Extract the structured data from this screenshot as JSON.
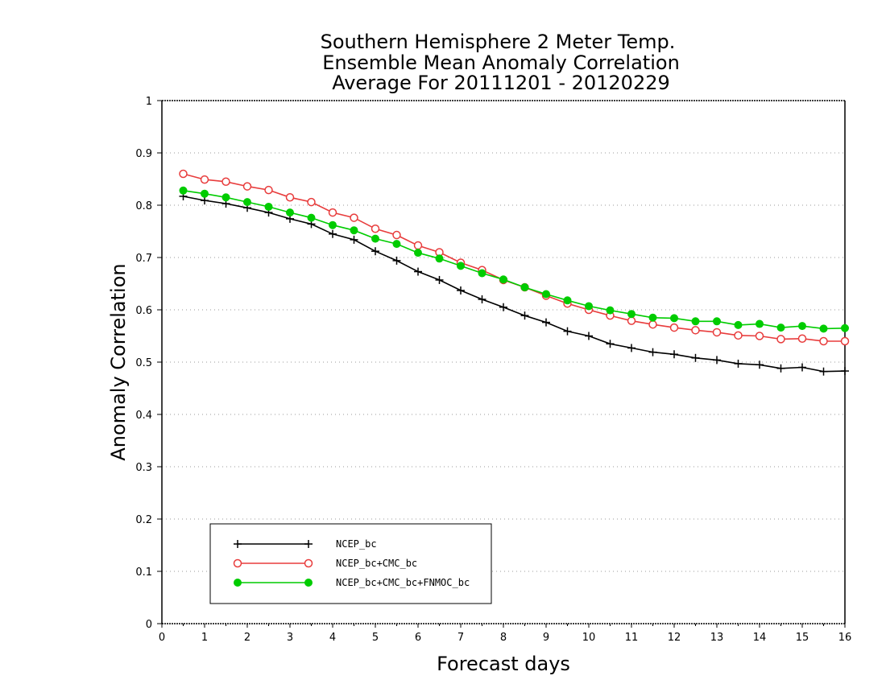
{
  "chart_data": {
    "type": "line",
    "title_lines": [
      "Southern Hemisphere 2 Meter Temp.",
      "Ensemble Mean Anomaly Correlation",
      "Average For 20111201 - 20120229"
    ],
    "xlabel": "Forecast days",
    "ylabel": "Anomaly Correlation",
    "xlim": [
      0,
      16
    ],
    "ylim": [
      0,
      1
    ],
    "x_ticks": [
      0,
      1,
      2,
      3,
      4,
      5,
      6,
      7,
      8,
      9,
      10,
      11,
      12,
      13,
      14,
      15,
      16
    ],
    "y_ticks": [
      0,
      0.1,
      0.2,
      0.3,
      0.4,
      0.5,
      0.6,
      0.7,
      0.8,
      0.9,
      1
    ],
    "y_tick_labels": [
      "0",
      "0.1",
      "0.2",
      "0.3",
      "0.4",
      "0.5",
      "0.6",
      "0.7",
      "0.8",
      "0.9",
      "1"
    ],
    "grid": "horizontal-dotted",
    "legend_position": "bottom-left",
    "x": [
      0.5,
      1.0,
      1.5,
      2.0,
      2.5,
      3.0,
      3.5,
      4.0,
      4.5,
      5.0,
      5.5,
      6.0,
      6.5,
      7.0,
      7.5,
      8.0,
      8.5,
      9.0,
      9.5,
      10.0,
      10.5,
      11.0,
      11.5,
      12.0,
      12.5,
      13.0,
      13.5,
      14.0,
      14.5,
      15.0,
      15.5,
      16.0
    ],
    "series": [
      {
        "name": "NCEP_bc",
        "color": "#000000",
        "marker": "plus",
        "values": [
          0.817,
          0.809,
          0.803,
          0.795,
          0.786,
          0.774,
          0.764,
          0.745,
          0.734,
          0.712,
          0.694,
          0.673,
          0.657,
          0.637,
          0.62,
          0.605,
          0.589,
          0.576,
          0.559,
          0.55,
          0.535,
          0.527,
          0.519,
          0.515,
          0.508,
          0.504,
          0.497,
          0.495,
          0.488,
          0.49,
          0.482,
          0.483
        ]
      },
      {
        "name": "NCEP_bc+CMC_bc",
        "color": "#e83c3c",
        "marker": "open-circle",
        "values": [
          0.86,
          0.849,
          0.845,
          0.836,
          0.829,
          0.815,
          0.806,
          0.786,
          0.776,
          0.755,
          0.743,
          0.723,
          0.71,
          0.69,
          0.676,
          0.657,
          0.643,
          0.627,
          0.612,
          0.6,
          0.589,
          0.579,
          0.572,
          0.566,
          0.561,
          0.557,
          0.551,
          0.55,
          0.544,
          0.545,
          0.54,
          0.54
        ]
      },
      {
        "name": "NCEP_bc+CMC_bc+FNMOC_bc",
        "color": "#00cc00",
        "marker": "filled-circle",
        "values": [
          0.828,
          0.822,
          0.815,
          0.806,
          0.797,
          0.786,
          0.776,
          0.762,
          0.752,
          0.736,
          0.726,
          0.709,
          0.698,
          0.684,
          0.67,
          0.658,
          0.643,
          0.63,
          0.618,
          0.607,
          0.599,
          0.592,
          0.585,
          0.584,
          0.578,
          0.578,
          0.571,
          0.573,
          0.566,
          0.569,
          0.564,
          0.565
        ]
      }
    ]
  }
}
